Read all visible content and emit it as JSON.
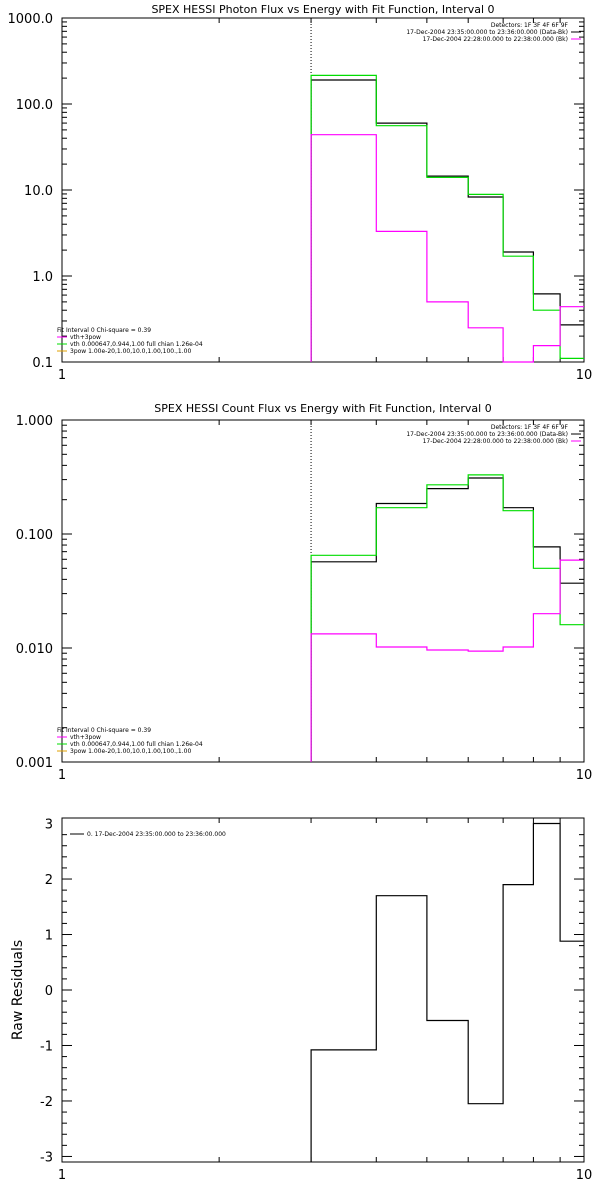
{
  "chart_data": [
    {
      "type": "line",
      "title": "SPEX HESSI Photon Flux vs Energy with Fit Function, Interval 0",
      "xlabel": "",
      "ylabel": "",
      "x_scale": "log",
      "y_scale": "log",
      "xlim": [
        1,
        10
      ],
      "ylim": [
        0.1,
        1000
      ],
      "xticks": [
        "1",
        "10"
      ],
      "yticks": [
        "0.1",
        "1.0",
        "10.0",
        "100.0",
        "1000.0"
      ],
      "vline_x": 3,
      "legend_top": [
        "Detectors: 1F 3F 4F 6F 9F",
        "17-Dec-2004 23:35:00.000 to 23:36:00.000 (Data-Bk)",
        "17-Dec-2004 22:28:00.000 to 22:38:00.000 (Bk)"
      ],
      "legend_bottom": [
        "Fit Interval 0   Chi-square = 0.39",
        "vth+3pow",
        "vth 0.000647,0.944,1.00  full chian 1.26e-04",
        "3pow 1.00e-20,1.00,10.0,1.00,100.,1.00"
      ],
      "series": [
        {
          "color": "#000000",
          "edges": [
            3,
            4,
            5,
            6,
            7,
            8,
            9,
            10
          ],
          "values": [
            190,
            60,
            14.5,
            8.3,
            1.9,
            0.62,
            0.27
          ]
        },
        {
          "color": "#00dd00",
          "edges": [
            3,
            4,
            5,
            6,
            7,
            8,
            9,
            10
          ],
          "values": [
            215,
            56,
            14,
            8.9,
            1.7,
            0.4,
            0.11
          ]
        },
        {
          "color": "#ff00ff",
          "edges": [
            3,
            4,
            5,
            6,
            7,
            8,
            9,
            10
          ],
          "values": [
            44,
            3.3,
            0.5,
            0.25,
            0.1,
            0.155,
            0.44
          ]
        }
      ]
    },
    {
      "type": "line",
      "title": "SPEX HESSI Count Flux vs Energy with Fit Function, Interval 0",
      "xlabel": "",
      "ylabel": "",
      "x_scale": "log",
      "y_scale": "log",
      "xlim": [
        1,
        10
      ],
      "ylim": [
        0.001,
        1.0
      ],
      "xticks": [
        "1",
        "10"
      ],
      "yticks": [
        "0.001",
        "0.010",
        "0.100",
        "1.000"
      ],
      "vline_x": 3,
      "legend_top": [
        "Detectors: 1F 3F 4F 6F 9F",
        "17-Dec-2004 23:35:00.000 to 23:36:00.000 (Data-Bk)",
        "17-Dec-2004 22:28:00.000 to 22:38:00.000 (Bk)"
      ],
      "legend_bottom": [
        "Fit Interval 0   Chi-square = 0.39",
        "vth+3pow",
        "vth 0.000647,0.944,1.00  full chian 1.26e-04",
        "3pow 1.00e-20,1.00,10.0,1.00,100.,1.00"
      ],
      "series": [
        {
          "color": "#000000",
          "edges": [
            3,
            4,
            5,
            6,
            7,
            8,
            9,
            10
          ],
          "values": [
            0.057,
            0.185,
            0.25,
            0.31,
            0.17,
            0.077,
            0.037
          ]
        },
        {
          "color": "#00dd00",
          "edges": [
            3,
            4,
            5,
            6,
            7,
            8,
            9,
            10
          ],
          "values": [
            0.065,
            0.17,
            0.27,
            0.33,
            0.16,
            0.05,
            0.016
          ]
        },
        {
          "color": "#ff00ff",
          "edges": [
            3,
            4,
            5,
            6,
            7,
            8,
            9,
            10
          ],
          "values": [
            0.0133,
            0.0102,
            0.0096,
            0.0094,
            0.0102,
            0.02,
            0.059
          ]
        }
      ]
    },
    {
      "type": "line",
      "title": "",
      "xlabel": "",
      "ylabel": "Raw Residuals",
      "x_scale": "log",
      "y_scale": "linear",
      "xlim": [
        1,
        10
      ],
      "ylim": [
        -3.1,
        3.1
      ],
      "xticks": [
        "1",
        "10"
      ],
      "yticks": [
        "-3",
        "-2",
        "-1",
        "0",
        "1",
        "2",
        "3"
      ],
      "legend_top": [
        "0. 17-Dec-2004 23:35:00.000 to 23:36:00.000"
      ],
      "series": [
        {
          "color": "#000000",
          "edges": [
            3,
            4,
            5,
            6,
            7,
            8,
            9,
            10
          ],
          "values": [
            -1.08,
            1.7,
            -0.55,
            -2.05,
            1.9,
            3.0,
            0.88
          ]
        }
      ]
    }
  ]
}
